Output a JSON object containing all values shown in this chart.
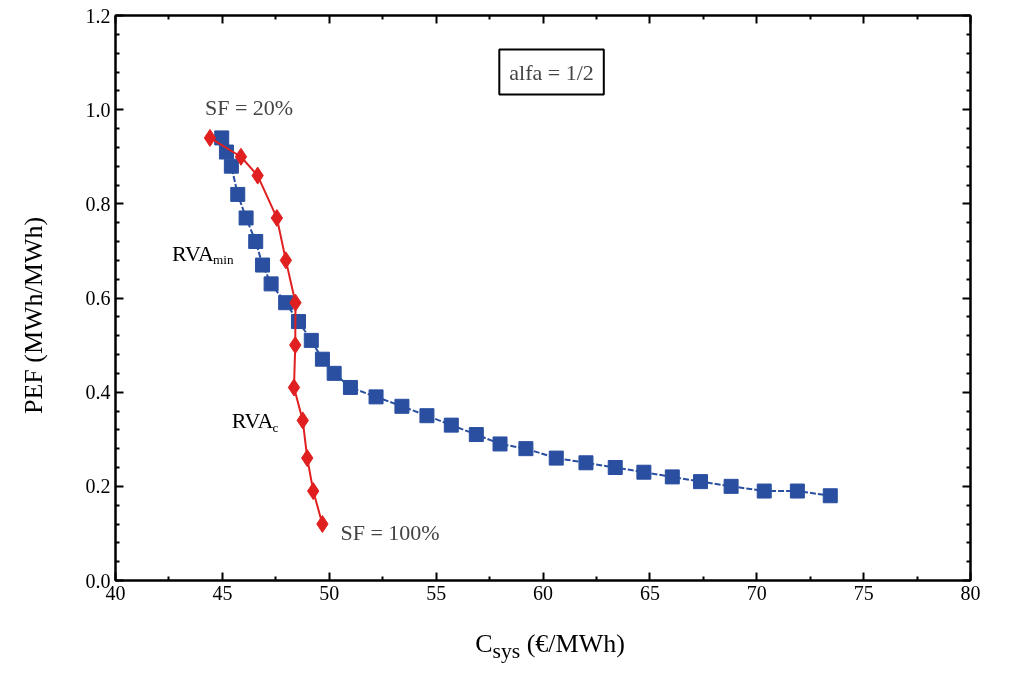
{
  "chart_data": {
    "type": "line",
    "xlabel": "C$_{sys}$ (€/MWh)",
    "ylabel": "PEF (MWh/MWh)",
    "xlim": [
      40,
      80
    ],
    "xticks": [
      40,
      45,
      50,
      55,
      60,
      65,
      70,
      75,
      80
    ],
    "ylim": [
      0,
      1.2
    ],
    "yticks": [
      {
        "value": 0,
        "label": "0.0"
      },
      {
        "value": 0.2,
        "label": "0.2"
      },
      {
        "value": 0.4,
        "label": "0.4"
      },
      {
        "value": 0.6,
        "label": "0.6"
      },
      {
        "value": 0.8,
        "label": "0.8"
      },
      {
        "value": 1.0,
        "label": "1.0"
      },
      {
        "value": 1.2,
        "label": "1.2"
      }
    ],
    "grid": false,
    "legend": false,
    "series": [
      {
        "name": "RVA$_{min}$",
        "color": "#2a4fa0",
        "marker": "square",
        "line_style": "dashed",
        "x": [
          44.97,
          45.19,
          45.42,
          45.72,
          46.11,
          46.56,
          46.88,
          47.28,
          47.96,
          48.56,
          49.16,
          49.68,
          50.23,
          50.99,
          52.19,
          53.4,
          54.57,
          55.71,
          56.88,
          57.99,
          59.2,
          60.62,
          62.01,
          63.38,
          64.72,
          66.05,
          67.37,
          68.8,
          70.35,
          71.9,
          73.44
        ],
        "values": [
          0.94,
          0.91,
          0.88,
          0.82,
          0.77,
          0.72,
          0.67,
          0.63,
          0.59,
          0.55,
          0.51,
          0.47,
          0.44,
          0.41,
          0.39,
          0.37,
          0.35,
          0.33,
          0.31,
          0.29,
          0.28,
          0.26,
          0.25,
          0.24,
          0.23,
          0.22,
          0.21,
          0.2,
          0.19,
          0.19,
          0.18
        ]
      },
      {
        "name": "RVA$_{c}$",
        "color": "#e02020",
        "marker": "diamond",
        "line_style": "solid",
        "x": [
          44.42,
          45.87,
          46.65,
          47.55,
          47.97,
          48.42,
          48.41,
          48.35,
          48.76,
          48.97,
          49.25,
          49.68
        ],
        "values": [
          0.94,
          0.9,
          0.86,
          0.77,
          0.68,
          0.59,
          0.5,
          0.41,
          0.34,
          0.26,
          0.19,
          0.12
        ]
      }
    ],
    "annotations": [
      {
        "text": "SF = 20%",
        "x": 44.42,
        "y": 0.94
      },
      {
        "text": "SF = 100%",
        "x": 49.68,
        "y": 0.12
      },
      "alfa = 1/2"
    ]
  }
}
